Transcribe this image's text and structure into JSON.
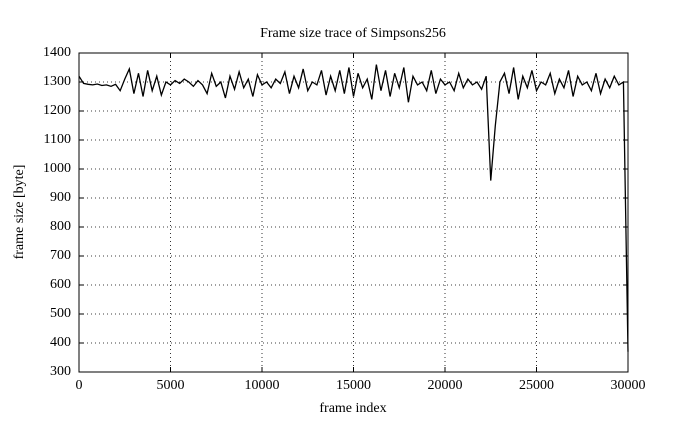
{
  "chart_data": {
    "type": "line",
    "title": "Frame size trace of Simpsons256",
    "x_label": "frame index",
    "y_label": "frame size [byte]",
    "x": [
      0,
      250,
      500,
      750,
      1000,
      1250,
      1500,
      1750,
      2000,
      2250,
      2500,
      2750,
      3000,
      3250,
      3500,
      3750,
      4000,
      4250,
      4500,
      4750,
      5000,
      5250,
      5500,
      5750,
      6000,
      6250,
      6500,
      6750,
      7000,
      7250,
      7500,
      7750,
      8000,
      8250,
      8500,
      8750,
      9000,
      9250,
      9500,
      9750,
      10000,
      10250,
      10500,
      10750,
      11000,
      11250,
      11500,
      11750,
      12000,
      12250,
      12500,
      12750,
      13000,
      13250,
      13500,
      13750,
      14000,
      14250,
      14500,
      14750,
      15000,
      15250,
      15500,
      15750,
      16000,
      16250,
      16500,
      16750,
      17000,
      17250,
      17500,
      17750,
      18000,
      18250,
      18500,
      18750,
      19000,
      19250,
      19500,
      19750,
      20000,
      20250,
      20500,
      20750,
      21000,
      21250,
      21500,
      21750,
      22000,
      22250,
      22500,
      22750,
      23000,
      23250,
      23500,
      23750,
      24000,
      24250,
      24500,
      24750,
      25000,
      25250,
      25500,
      25750,
      26000,
      26250,
      26500,
      26750,
      27000,
      27250,
      27500,
      27750,
      28000,
      28250,
      28500,
      28750,
      29000,
      29250,
      29500,
      29750,
      30000
    ],
    "series": [
      {
        "name": "Simpsons256",
        "color": "#000000",
        "values": [
          1320,
          1295,
          1292,
          1290,
          1293,
          1288,
          1290,
          1285,
          1292,
          1270,
          1310,
          1345,
          1260,
          1330,
          1250,
          1340,
          1270,
          1320,
          1255,
          1300,
          1290,
          1305,
          1295,
          1310,
          1300,
          1285,
          1305,
          1290,
          1260,
          1330,
          1285,
          1300,
          1245,
          1320,
          1275,
          1335,
          1280,
          1310,
          1250,
          1325,
          1290,
          1300,
          1280,
          1310,
          1295,
          1335,
          1260,
          1320,
          1280,
          1345,
          1270,
          1300,
          1290,
          1340,
          1255,
          1320,
          1270,
          1340,
          1260,
          1350,
          1250,
          1330,
          1280,
          1310,
          1240,
          1360,
          1270,
          1340,
          1250,
          1330,
          1280,
          1350,
          1230,
          1320,
          1290,
          1300,
          1270,
          1340,
          1260,
          1310,
          1290,
          1300,
          1270,
          1330,
          1280,
          1310,
          1290,
          1300,
          1275,
          1320,
          960,
          1150,
          1300,
          1330,
          1260,
          1350,
          1240,
          1320,
          1280,
          1340,
          1270,
          1300,
          1290,
          1330,
          1260,
          1310,
          1280,
          1340,
          1250,
          1320,
          1290,
          1300,
          1270,
          1330,
          1260,
          1310,
          1280,
          1320,
          1290,
          1300,
          370
        ]
      }
    ],
    "xlim": [
      0,
      30000
    ],
    "xticks": [
      0,
      5000,
      10000,
      15000,
      20000,
      25000,
      30000
    ],
    "ylim": [
      300,
      1400
    ],
    "yticks": [
      300,
      400,
      500,
      600,
      700,
      800,
      900,
      1000,
      1100,
      1200,
      1300,
      1400
    ],
    "grid": true
  }
}
